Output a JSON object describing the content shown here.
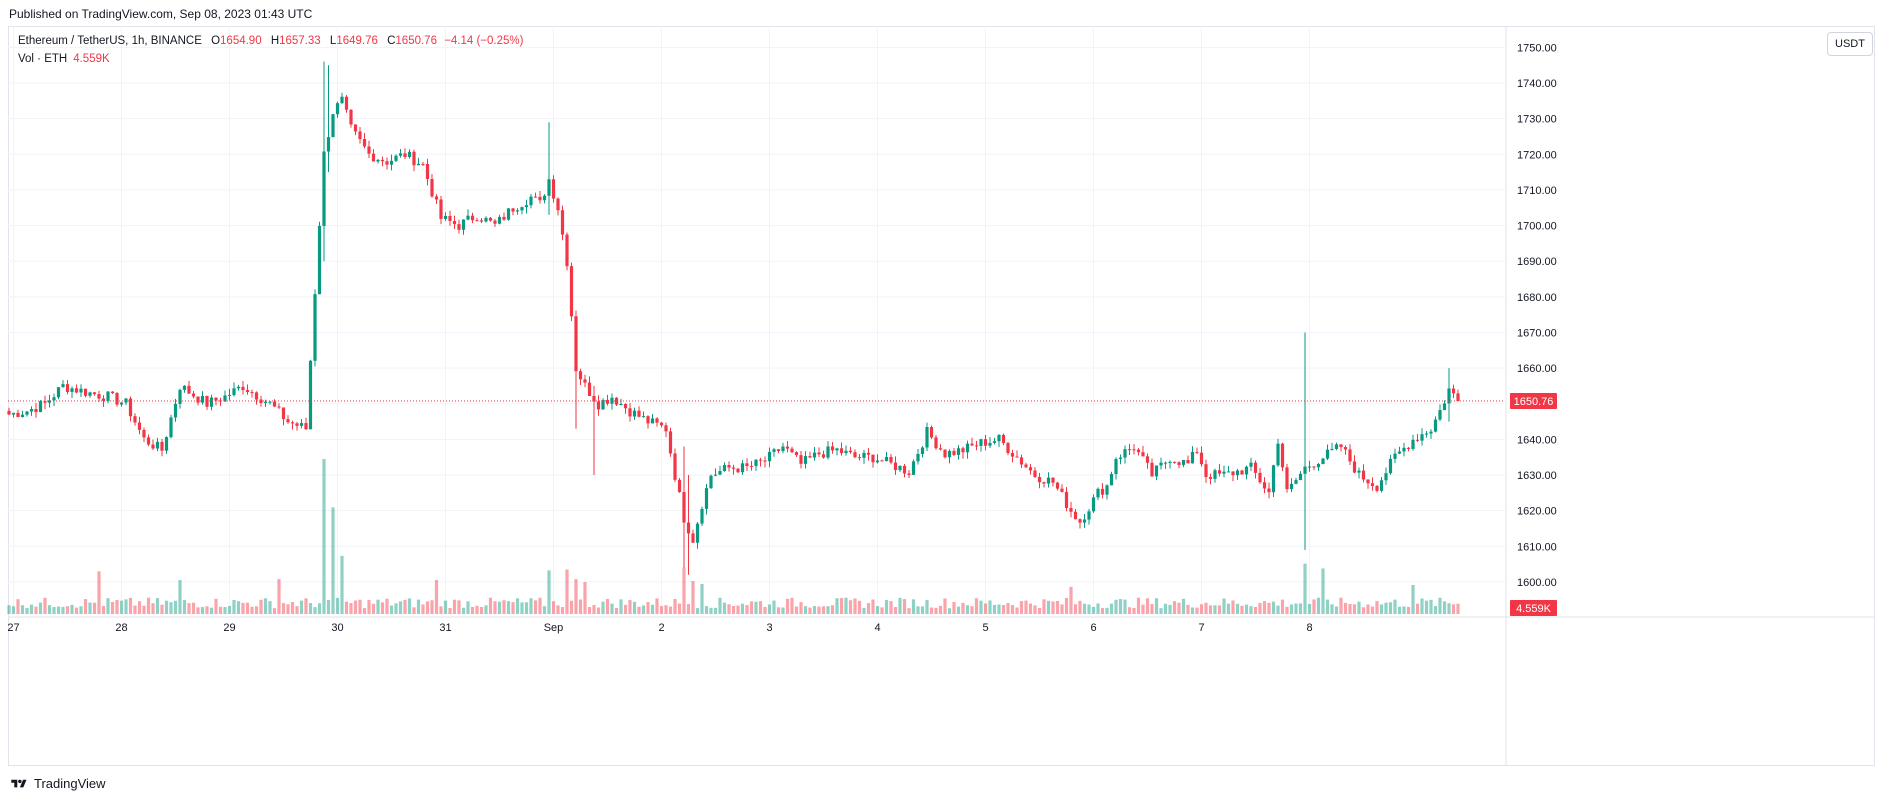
{
  "header": {
    "published": "Published on TradingView.com, Sep 08, 2023 01:43 UTC"
  },
  "legend": {
    "symbol": "Ethereum / TetherUS, 1h, BINANCE",
    "o_label": "O",
    "o": "1654.90",
    "h_label": "H",
    "h": "1657.33",
    "l_label": "L",
    "l": "1649.76",
    "c_label": "C",
    "c": "1650.76",
    "change": "−4.14 (−0.25%)",
    "vol_label": "Vol · ETH",
    "vol": "4.559K"
  },
  "currency_button": "USDT",
  "footer": {
    "brand": "TradingView"
  },
  "chart_data": {
    "type": "candlestick",
    "symbol": "ETHUSDT",
    "interval": "1h",
    "exchange": "BINANCE",
    "price_axis_ticks": [
      1600,
      1610,
      1620,
      1630,
      1640,
      1650,
      1660,
      1670,
      1680,
      1690,
      1700,
      1710,
      1720,
      1730,
      1740,
      1750
    ],
    "price_axis_labels": [
      "1600.00",
      "1610.00",
      "1620.00",
      "1630.00",
      "1640.00",
      "1650.00",
      "1660.00",
      "1670.00",
      "1680.00",
      "1690.00",
      "1700.00",
      "1710.00",
      "1720.00",
      "1730.00",
      "1740.00",
      "1750.00"
    ],
    "ylim": [
      1591,
      1756
    ],
    "last_price": 1650.76,
    "last_price_label": "1650.76",
    "last_volume_label": "4.559K",
    "time_axis_labels": [
      "27",
      "28",
      "29",
      "30",
      "31",
      "Sep",
      "2",
      "3",
      "4",
      "5",
      "6",
      "7",
      "8"
    ],
    "anchors": [
      [
        0,
        1647
      ],
      [
        4,
        1648
      ],
      [
        8,
        1650
      ],
      [
        12,
        1655
      ],
      [
        18,
        1653
      ],
      [
        22,
        1652
      ],
      [
        26,
        1650
      ],
      [
        30,
        1640
      ],
      [
        34,
        1637
      ],
      [
        38,
        1655
      ],
      [
        44,
        1650
      ],
      [
        48,
        1652
      ],
      [
        52,
        1655
      ],
      [
        58,
        1650
      ],
      [
        62,
        1645
      ],
      [
        66,
        1643
      ],
      [
        70,
        1720
      ],
      [
        72,
        1732
      ],
      [
        74,
        1735
      ],
      [
        76,
        1727
      ],
      [
        80,
        1720
      ],
      [
        84,
        1718
      ],
      [
        88,
        1720
      ],
      [
        92,
        1717
      ],
      [
        96,
        1702
      ],
      [
        100,
        1700
      ],
      [
        104,
        1703
      ],
      [
        108,
        1700
      ],
      [
        112,
        1705
      ],
      [
        116,
        1708
      ],
      [
        118,
        1706
      ],
      [
        120,
        1713
      ],
      [
        122,
        1705
      ],
      [
        124,
        1690
      ],
      [
        126,
        1660
      ],
      [
        128,
        1655
      ],
      [
        131,
        1650
      ],
      [
        134,
        1652
      ],
      [
        138,
        1648
      ],
      [
        142,
        1645
      ],
      [
        146,
        1643
      ],
      [
        148,
        1630
      ],
      [
        150,
        1618
      ],
      [
        152,
        1612
      ],
      [
        154,
        1622
      ],
      [
        156,
        1630
      ],
      [
        160,
        1632
      ],
      [
        164,
        1632
      ],
      [
        168,
        1634
      ],
      [
        172,
        1638
      ],
      [
        176,
        1633
      ],
      [
        180,
        1636
      ],
      [
        184,
        1637
      ],
      [
        188,
        1635
      ],
      [
        192,
        1635
      ],
      [
        196,
        1633
      ],
      [
        200,
        1631
      ],
      [
        204,
        1642
      ],
      [
        208,
        1636
      ],
      [
        212,
        1637
      ],
      [
        216,
        1639
      ],
      [
        220,
        1640
      ],
      [
        224,
        1635
      ],
      [
        228,
        1630
      ],
      [
        232,
        1628
      ],
      [
        236,
        1620
      ],
      [
        238,
        1617
      ],
      [
        242,
        1625
      ],
      [
        244,
        1627
      ],
      [
        246,
        1635
      ],
      [
        250,
        1638
      ],
      [
        254,
        1630
      ],
      [
        258,
        1635
      ],
      [
        262,
        1633
      ],
      [
        264,
        1637
      ],
      [
        266,
        1630
      ],
      [
        270,
        1630
      ],
      [
        276,
        1632
      ],
      [
        280,
        1625
      ],
      [
        282,
        1640
      ],
      [
        284,
        1625
      ],
      [
        288,
        1632
      ],
      [
        292,
        1635
      ],
      [
        296,
        1638
      ],
      [
        300,
        1630
      ],
      [
        304,
        1627
      ],
      [
        308,
        1635
      ],
      [
        312,
        1640
      ],
      [
        316,
        1643
      ],
      [
        318,
        1648
      ],
      [
        320,
        1654
      ],
      [
        322,
        1650.76
      ]
    ],
    "volume_spikes": [
      [
        70,
        16
      ],
      [
        72,
        11
      ],
      [
        74,
        6
      ],
      [
        20,
        4.4
      ],
      [
        38,
        3.5
      ],
      [
        60,
        3.6
      ],
      [
        95,
        3.5
      ],
      [
        120,
        4.5
      ],
      [
        124,
        4.6
      ],
      [
        126,
        3.6
      ],
      [
        128,
        3.3
      ],
      [
        150,
        4.8
      ],
      [
        152,
        3.4
      ],
      [
        154,
        3.1
      ],
      [
        288,
        5.2
      ],
      [
        292,
        4.7
      ],
      [
        312,
        3.0
      ],
      [
        236,
        2.8
      ]
    ]
  }
}
